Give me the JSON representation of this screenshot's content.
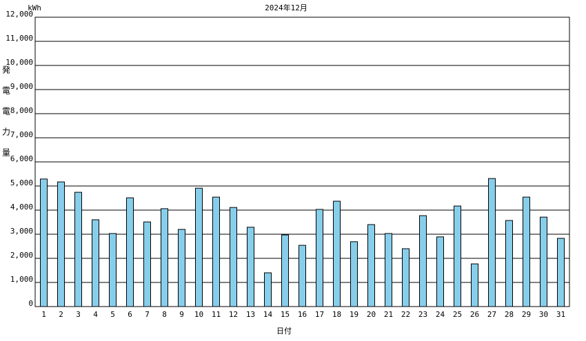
{
  "chart_data": {
    "type": "bar",
    "title": "2024年12月",
    "unit": "kWh",
    "y_label": "発電電力量",
    "x_label": "日付",
    "categories": [
      "1",
      "2",
      "3",
      "4",
      "5",
      "6",
      "7",
      "8",
      "9",
      "10",
      "11",
      "12",
      "13",
      "14",
      "15",
      "16",
      "17",
      "18",
      "19",
      "20",
      "21",
      "22",
      "23",
      "24",
      "25",
      "26",
      "27",
      "28",
      "29",
      "30",
      "31"
    ],
    "values": [
      5290,
      5170,
      4740,
      3600,
      3030,
      4510,
      3510,
      4060,
      3200,
      4910,
      4540,
      4110,
      3290,
      1400,
      2970,
      2540,
      4030,
      4370,
      2690,
      3400,
      3030,
      2400,
      3770,
      2890,
      4170,
      1770,
      5310,
      3570,
      4540,
      3710,
      2830
    ],
    "color": "#87ceeb",
    "ylim": [
      0,
      12000
    ],
    "yticks": [
      0,
      {
        "value": 1000,
        "label": "1,000"
      },
      {
        "value": 2000,
        "label": "2,000"
      },
      {
        "value": 3000,
        "label": "3,000"
      },
      {
        "value": 4000,
        "label": "4,000"
      },
      {
        "value": 5000,
        "label": "5,000"
      },
      {
        "value": 6000,
        "label": "6,000"
      },
      {
        "value": 7000,
        "label": "7,000"
      },
      {
        "value": 8000,
        "label": "8,000"
      },
      {
        "value": 9000,
        "label": "9,000"
      },
      {
        "value": 10000,
        "label": "10,000"
      },
      {
        "value": 11000,
        "label": "11,000"
      },
      {
        "value": 12000,
        "label": "12,000"
      }
    ],
    "grid": true
  }
}
